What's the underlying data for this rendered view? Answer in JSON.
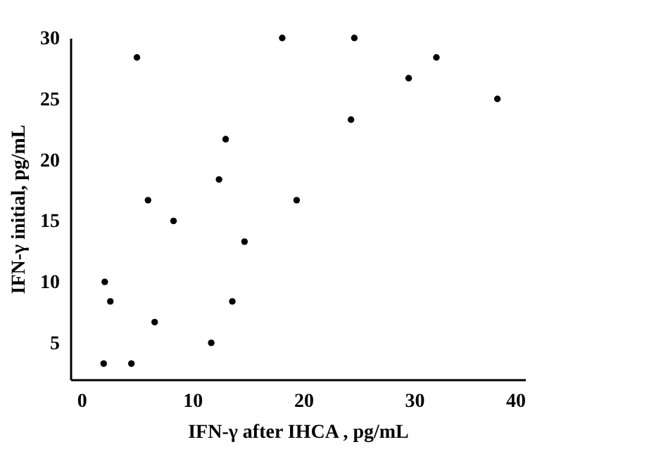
{
  "chart_data": {
    "type": "scatter",
    "xlabel": "IFN-γ after IHCA , pg/mL",
    "ylabel": "IFN-γ initial, pg/mL",
    "x": [
      5.0,
      18.1,
      24.6,
      32.0,
      29.5,
      37.5,
      24.3,
      13.0,
      12.4,
      6.0,
      19.4,
      8.3,
      14.7,
      2.1,
      2.6,
      13.6,
      6.6,
      11.7,
      2.0,
      4.5
    ],
    "values": [
      28.4,
      30.0,
      30.0,
      28.4,
      26.7,
      25.0,
      23.3,
      21.7,
      18.4,
      16.7,
      16.7,
      15.0,
      13.3,
      10.0,
      8.4,
      8.4,
      6.7,
      5.0,
      3.3,
      3.3
    ],
    "color": "#000000",
    "marker": "circle",
    "xlim": [
      -1,
      40
    ],
    "xticks": [
      0,
      10,
      20,
      30,
      40
    ],
    "ylim": [
      2,
      30
    ],
    "yticks": [
      5,
      10,
      15,
      20,
      25,
      30
    ],
    "grid": false
  }
}
